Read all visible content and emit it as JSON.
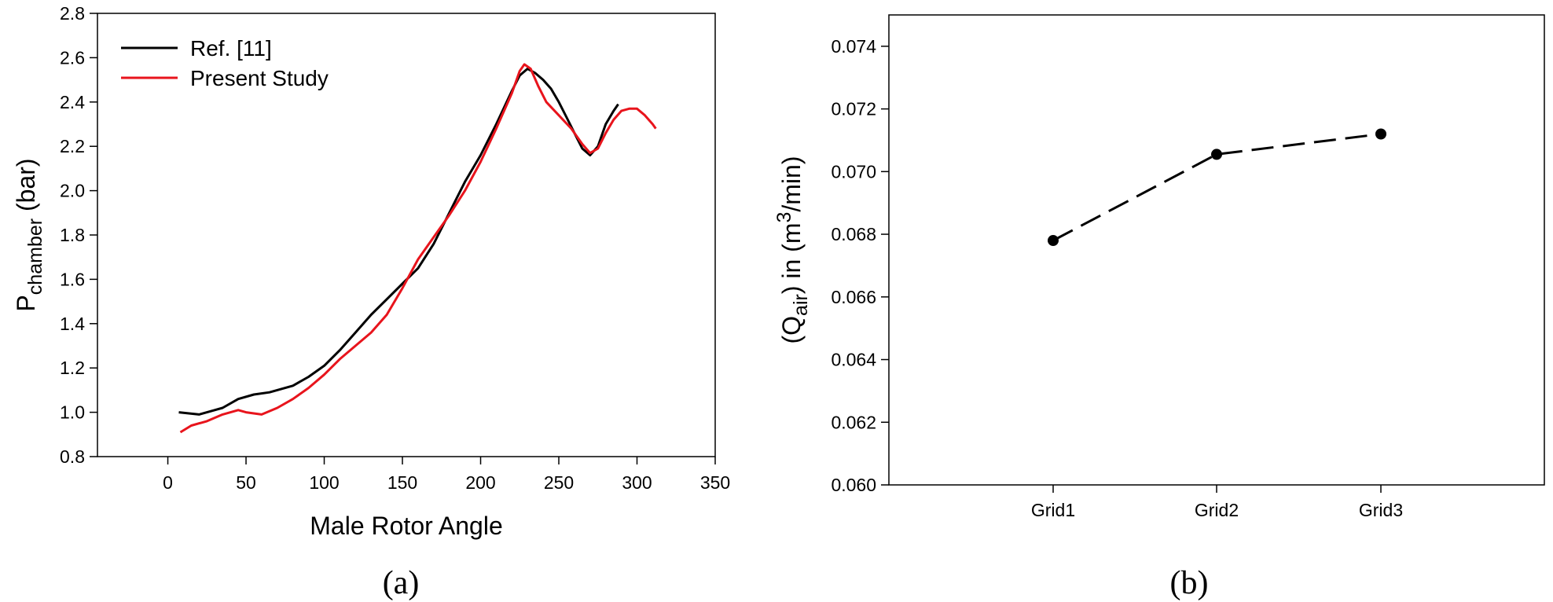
{
  "chart_data": [
    {
      "type": "line",
      "panel_label": "(a)",
      "xlabel": "Male Rotor Angle",
      "ylabel_main": "P",
      "ylabel_sub": "chamber",
      "ylabel_unit": " (bar)",
      "xlim": [
        -45,
        350
      ],
      "ylim": [
        0.8,
        2.8
      ],
      "xticks": [
        "0",
        "50",
        "100",
        "150",
        "200",
        "250",
        "300",
        "350"
      ],
      "yticks": [
        "0.8",
        "1.0",
        "1.2",
        "1.4",
        "1.6",
        "1.8",
        "2.0",
        "2.2",
        "2.4",
        "2.6",
        "2.8"
      ],
      "grid": false,
      "legend_position": "top-left",
      "series": [
        {
          "name": "Ref. [11]",
          "color": "#000000",
          "points": [
            [
              7,
              1.0
            ],
            [
              20,
              0.99
            ],
            [
              30,
              1.01
            ],
            [
              35,
              1.02
            ],
            [
              45,
              1.06
            ],
            [
              55,
              1.08
            ],
            [
              65,
              1.09
            ],
            [
              80,
              1.12
            ],
            [
              90,
              1.16
            ],
            [
              100,
              1.21
            ],
            [
              110,
              1.28
            ],
            [
              120,
              1.36
            ],
            [
              130,
              1.44
            ],
            [
              140,
              1.51
            ],
            [
              150,
              1.58
            ],
            [
              160,
              1.65
            ],
            [
              170,
              1.76
            ],
            [
              180,
              1.9
            ],
            [
              190,
              2.04
            ],
            [
              200,
              2.16
            ],
            [
              210,
              2.3
            ],
            [
              220,
              2.45
            ],
            [
              225,
              2.52
            ],
            [
              230,
              2.55
            ],
            [
              235,
              2.53
            ],
            [
              240,
              2.5
            ],
            [
              245,
              2.46
            ],
            [
              250,
              2.4
            ],
            [
              255,
              2.33
            ],
            [
              260,
              2.26
            ],
            [
              265,
              2.19
            ],
            [
              270,
              2.16
            ],
            [
              275,
              2.2
            ],
            [
              280,
              2.3
            ],
            [
              285,
              2.36
            ],
            [
              288,
              2.39
            ]
          ]
        },
        {
          "name": "Present Study",
          "color": "#e8141c",
          "points": [
            [
              8,
              0.91
            ],
            [
              15,
              0.94
            ],
            [
              25,
              0.96
            ],
            [
              35,
              0.99
            ],
            [
              45,
              1.01
            ],
            [
              50,
              1.0
            ],
            [
              60,
              0.99
            ],
            [
              70,
              1.02
            ],
            [
              80,
              1.06
            ],
            [
              90,
              1.11
            ],
            [
              100,
              1.17
            ],
            [
              110,
              1.24
            ],
            [
              120,
              1.3
            ],
            [
              130,
              1.36
            ],
            [
              140,
              1.44
            ],
            [
              150,
              1.56
            ],
            [
              160,
              1.69
            ],
            [
              170,
              1.79
            ],
            [
              180,
              1.89
            ],
            [
              190,
              2.0
            ],
            [
              200,
              2.13
            ],
            [
              210,
              2.28
            ],
            [
              220,
              2.44
            ],
            [
              225,
              2.54
            ],
            [
              228,
              2.57
            ],
            [
              232,
              2.55
            ],
            [
              237,
              2.47
            ],
            [
              242,
              2.4
            ],
            [
              250,
              2.34
            ],
            [
              258,
              2.28
            ],
            [
              265,
              2.21
            ],
            [
              270,
              2.17
            ],
            [
              275,
              2.19
            ],
            [
              280,
              2.26
            ],
            [
              285,
              2.32
            ],
            [
              290,
              2.36
            ],
            [
              295,
              2.37
            ],
            [
              300,
              2.37
            ],
            [
              305,
              2.34
            ],
            [
              310,
              2.3
            ],
            [
              312,
              2.28
            ]
          ]
        }
      ]
    },
    {
      "type": "line",
      "panel_label": "(b)",
      "ylabel": "(Qair) in (m3/min)",
      "ylabel_q": "(Q",
      "ylabel_q_sub": "air",
      "ylabel_mid": ") in (m",
      "ylabel_sup": "3",
      "ylabel_end": "/min)",
      "categories": [
        "Grid1",
        "Grid2",
        "Grid3"
      ],
      "ylim": [
        0.06,
        0.075
      ],
      "yticks": [
        "0.060",
        "0.062",
        "0.064",
        "0.066",
        "0.068",
        "0.070",
        "0.072",
        "0.074"
      ],
      "grid": false,
      "line_style": "dashed",
      "marker": "filled circle",
      "series": [
        {
          "values": [
            0.0678,
            0.07055,
            0.0712
          ],
          "color": "#000000"
        }
      ]
    }
  ]
}
